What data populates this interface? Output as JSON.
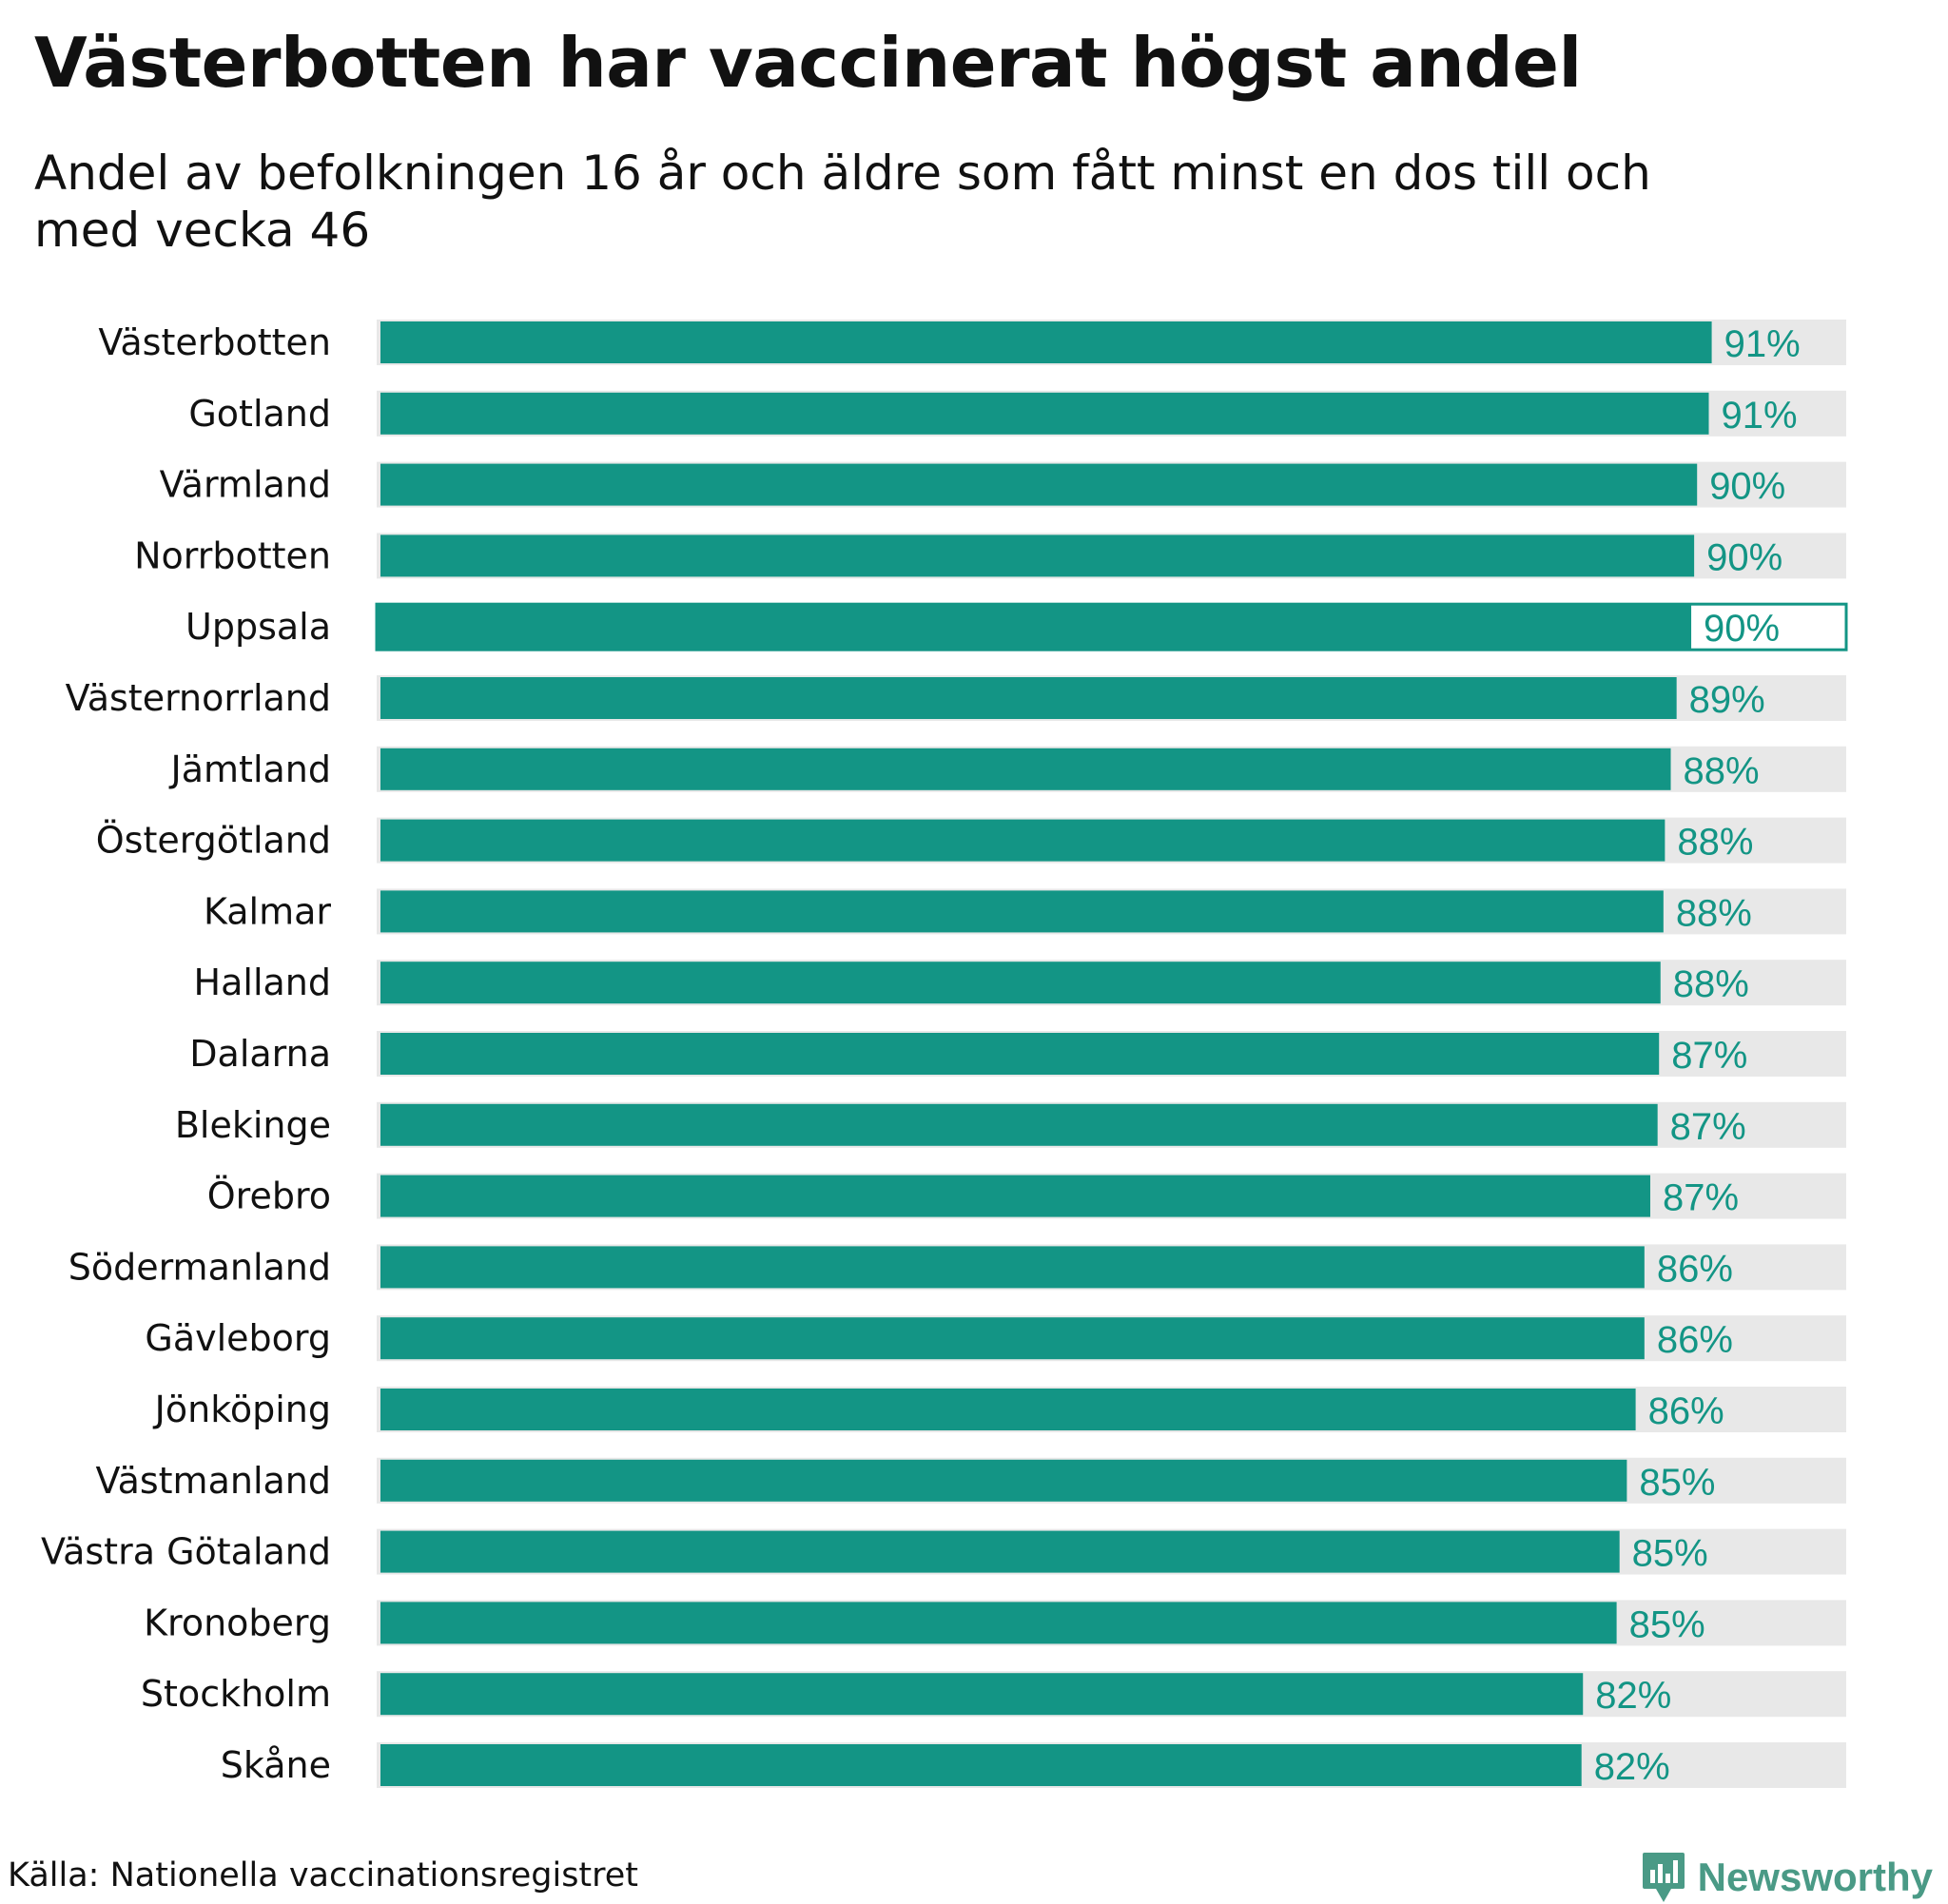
{
  "chart": {
    "title": "Västerbotten har vaccinerat högst andel",
    "subtitle": "Andel av befolkningen 16 år och äldre som fått minst en dos till och med vecka 46",
    "source": "Källa: Nationella vaccinationsregistret",
    "brand": "Newsworthy",
    "brand_icon": "newsworthy-logo-icon"
  },
  "colors": {
    "bar": "#139585",
    "track": "#e8e8e8",
    "value_text": "#139585",
    "brand": "#4a9a86"
  },
  "chart_data": {
    "type": "bar",
    "orientation": "horizontal",
    "title": "Västerbotten har vaccinerat högst andel",
    "subtitle": "Andel av befolkningen 16 år och äldre som fått minst en dos till och med vecka 46",
    "xlabel": "",
    "ylabel": "",
    "xlim": [
      0,
      100
    ],
    "unit": "%",
    "highlighted": "Uppsala",
    "categories": [
      "Västerbotten",
      "Gotland",
      "Värmland",
      "Norrbotten",
      "Uppsala",
      "Västernorrland",
      "Jämtland",
      "Östergötland",
      "Kalmar",
      "Halland",
      "Dalarna",
      "Blekinge",
      "Örebro",
      "Södermanland",
      "Gävleborg",
      "Jönköping",
      "Västmanland",
      "Västra Götaland",
      "Kronoberg",
      "Stockholm",
      "Skåne"
    ],
    "values": [
      91.0,
      90.8,
      90.0,
      89.8,
      89.6,
      88.6,
      88.2,
      87.8,
      87.7,
      87.5,
      87.4,
      87.3,
      86.8,
      86.4,
      86.4,
      85.8,
      85.2,
      84.7,
      84.5,
      82.2,
      82.1
    ],
    "labels": [
      "91%",
      "91%",
      "90%",
      "90%",
      "90%",
      "89%",
      "88%",
      "88%",
      "88%",
      "88%",
      "87%",
      "87%",
      "87%",
      "86%",
      "86%",
      "86%",
      "85%",
      "85%",
      "85%",
      "82%",
      "82%"
    ]
  }
}
